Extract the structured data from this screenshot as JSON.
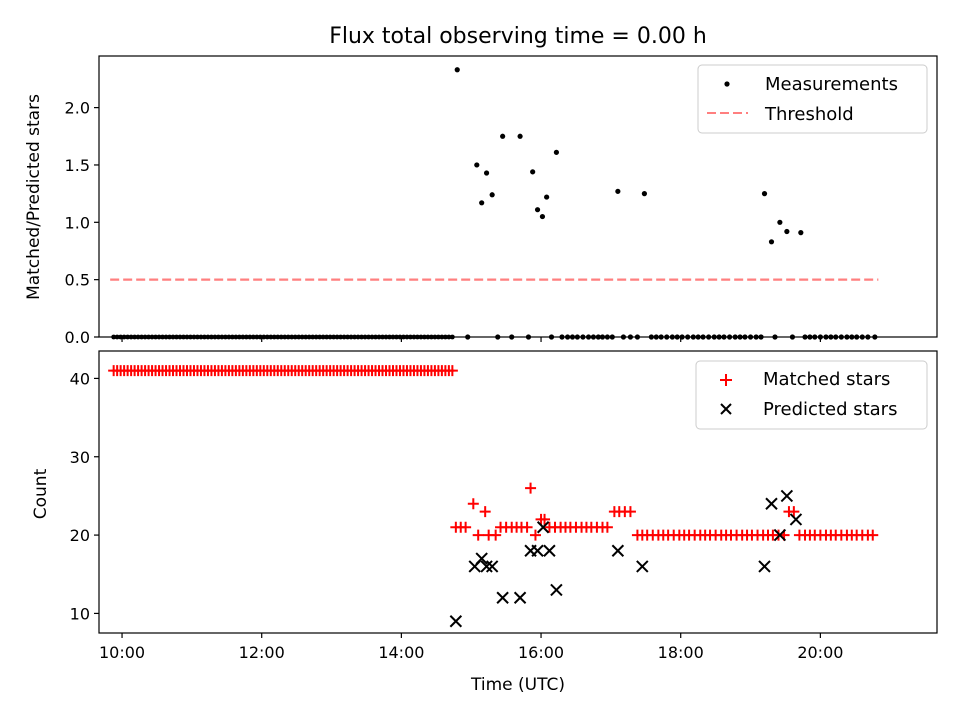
{
  "chart_data": [
    {
      "type": "scatter",
      "title": "Flux total observing time = 0.00 h",
      "xlabel": "",
      "ylabel": "Matched/Predicted stars",
      "xlim": [
        9.67,
        21.67
      ],
      "ylim": [
        0.0,
        2.45
      ],
      "yticks": [
        0.0,
        0.5,
        1.0,
        1.5,
        2.0
      ],
      "ytick_labels": [
        "0.0",
        "0.5",
        "1.0",
        "1.5",
        "2.0"
      ],
      "colors": {
        "measurements": "#000000",
        "threshold": "#ff7f7f"
      },
      "legend": {
        "position": "top-right",
        "entries": [
          "Measurements",
          "Threshold"
        ]
      },
      "threshold": {
        "name": "Threshold",
        "y": 0.5,
        "x_range": [
          9.83,
          20.83
        ]
      },
      "zero_points": {
        "x_start": 9.88,
        "x_end": 14.75,
        "step": 0.05
      },
      "series": [
        {
          "name": "Measurements",
          "x": [
            14.8,
            14.95,
            15.08,
            15.15,
            15.22,
            15.3,
            15.38,
            15.45,
            15.58,
            15.7,
            15.82,
            15.88,
            15.95,
            16.02,
            16.08,
            16.15,
            16.22,
            16.3,
            16.38,
            16.45,
            16.52,
            16.6,
            16.68,
            16.75,
            16.82,
            16.88,
            16.95,
            17.02,
            17.1,
            17.18,
            17.28,
            17.38,
            17.48,
            17.58,
            17.65,
            17.72,
            17.8,
            17.88,
            17.95,
            18.02,
            18.1,
            18.18,
            18.25,
            18.32,
            18.4,
            18.48,
            18.55,
            18.62,
            18.7,
            18.78,
            18.85,
            18.92,
            19.0,
            19.08,
            19.15,
            19.2,
            19.3,
            19.35,
            19.42,
            19.52,
            19.6,
            19.72,
            19.78,
            19.85,
            19.92,
            20.0,
            20.08,
            20.15,
            20.22,
            20.3,
            20.38,
            20.45,
            20.52,
            20.6,
            20.68,
            20.78
          ],
          "y": [
            2.33,
            0.0,
            1.5,
            1.17,
            1.43,
            1.24,
            0.0,
            1.75,
            0.0,
            1.75,
            0.0,
            1.44,
            1.11,
            1.05,
            1.22,
            0.0,
            1.61,
            0.0,
            0.0,
            0.0,
            0.0,
            0.0,
            0.0,
            0.0,
            0.0,
            0.0,
            0.0,
            0.0,
            1.27,
            0.0,
            0.0,
            0.0,
            1.25,
            0.0,
            0.0,
            0.0,
            0.0,
            0.0,
            0.0,
            0.0,
            0.0,
            0.0,
            0.0,
            0.0,
            0.0,
            0.0,
            0.0,
            0.0,
            0.0,
            0.0,
            0.0,
            0.0,
            0.0,
            0.0,
            0.0,
            1.25,
            0.83,
            0.0,
            1.0,
            0.92,
            0.0,
            0.91,
            0.0,
            0.0,
            0.0,
            0.0,
            0.0,
            0.0,
            0.0,
            0.0,
            0.0,
            0.0,
            0.0,
            0.0,
            0.0,
            0.0
          ]
        }
      ]
    },
    {
      "type": "scatter",
      "title": "",
      "xlabel": "Time (UTC)",
      "ylabel": "Count",
      "xlim": [
        9.67,
        21.67
      ],
      "ylim": [
        7.5,
        43.5
      ],
      "yticks": [
        10,
        20,
        30,
        40
      ],
      "ytick_labels": [
        "10",
        "20",
        "30",
        "40"
      ],
      "xticks": [
        10,
        12,
        14,
        16,
        18,
        20
      ],
      "xtick_labels": [
        "10:00",
        "12:00",
        "14:00",
        "16:00",
        "18:00",
        "20:00"
      ],
      "colors": {
        "matched": "#ff0000",
        "predicted": "#000000"
      },
      "legend": {
        "position": "top-right",
        "entries": [
          "Matched stars",
          "Predicted stars"
        ]
      },
      "matched_constant_run": {
        "x_start": 9.88,
        "x_end": 14.73,
        "step": 0.05,
        "value": 41
      },
      "series": [
        {
          "name": "Matched stars",
          "marker": "plus",
          "x": [
            14.78,
            14.85,
            14.92,
            15.03,
            15.1,
            15.2,
            15.25,
            15.35,
            15.42,
            15.5,
            15.58,
            15.65,
            15.72,
            15.8,
            15.85,
            15.92,
            16.0,
            16.05,
            16.12,
            16.2,
            16.28,
            16.35,
            16.42,
            16.5,
            16.58,
            16.65,
            16.72,
            16.8,
            16.88,
            16.95,
            17.05,
            17.12,
            17.2,
            17.28,
            17.38,
            17.45,
            17.52,
            17.6,
            17.68,
            17.75,
            17.82,
            17.9,
            17.98,
            18.05,
            18.12,
            18.2,
            18.28,
            18.35,
            18.42,
            18.5,
            18.58,
            18.65,
            18.72,
            18.8,
            18.88,
            18.95,
            19.02,
            19.1,
            19.18,
            19.25,
            19.32,
            19.4,
            19.48,
            19.55,
            19.62,
            19.7,
            19.78,
            19.85,
            19.92,
            20.0,
            20.08,
            20.15,
            20.22,
            20.3,
            20.38,
            20.45,
            20.52,
            20.6,
            20.68,
            20.75
          ],
          "y": [
            21,
            21,
            21,
            24,
            20,
            23,
            20,
            20,
            21,
            21,
            21,
            21,
            21,
            21,
            26,
            20,
            22,
            22,
            21,
            21,
            21,
            21,
            21,
            21,
            21,
            21,
            21,
            21,
            21,
            21,
            23,
            23,
            23,
            23,
            20,
            20,
            20,
            20,
            20,
            20,
            20,
            20,
            20,
            20,
            20,
            20,
            20,
            20,
            20,
            20,
            20,
            20,
            20,
            20,
            20,
            20,
            20,
            20,
            20,
            20,
            20,
            20,
            20,
            23,
            23,
            20,
            20,
            20,
            20,
            20,
            20,
            20,
            20,
            20,
            20,
            20,
            20,
            20,
            20,
            20
          ]
        },
        {
          "name": "Predicted stars",
          "marker": "x",
          "x": [
            14.78,
            15.05,
            15.15,
            15.22,
            15.3,
            15.45,
            15.7,
            15.85,
            15.95,
            16.03,
            16.12,
            16.22,
            17.1,
            17.45,
            19.2,
            19.3,
            19.42,
            19.52,
            19.65
          ],
          "y": [
            9,
            16,
            17,
            16,
            16,
            12,
            12,
            18,
            18,
            21,
            18,
            13,
            18,
            16,
            16,
            24,
            20,
            25,
            22
          ]
        }
      ]
    }
  ]
}
